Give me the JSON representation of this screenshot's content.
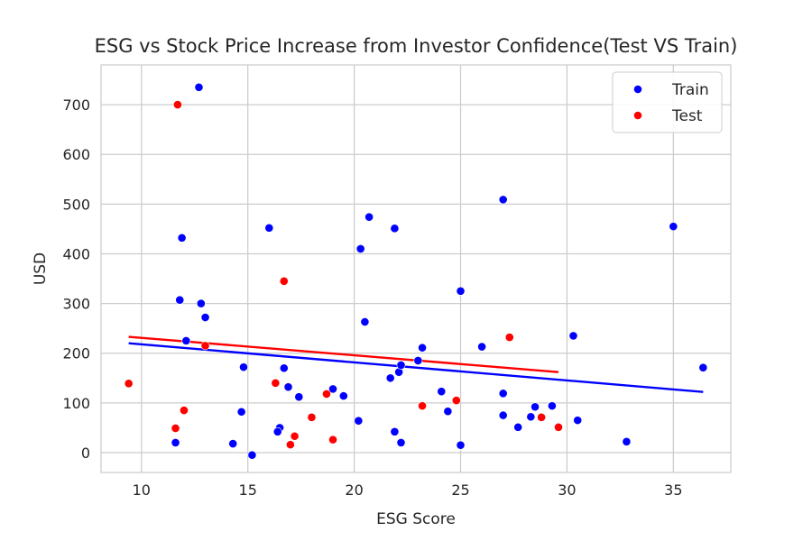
{
  "chart_data": {
    "type": "scatter",
    "title": "ESG vs Stock Price Increase from Investor Confidence(Test VS Train)",
    "xlabel": "ESG Score",
    "ylabel": "USD",
    "xlim": [
      8.1,
      37.7
    ],
    "ylim": [
      -40,
      780
    ],
    "xticks": [
      10,
      15,
      20,
      25,
      30,
      35
    ],
    "yticks": [
      0,
      100,
      200,
      300,
      400,
      500,
      600,
      700
    ],
    "grid": true,
    "legend_position": "top-right",
    "series": [
      {
        "name": "Train",
        "color": "#0000ff",
        "points": [
          [
            12.7,
            735
          ],
          [
            11.9,
            432
          ],
          [
            11.8,
            307
          ],
          [
            12.8,
            300
          ],
          [
            13.0,
            272
          ],
          [
            12.1,
            225
          ],
          [
            11.6,
            20
          ],
          [
            14.8,
            172
          ],
          [
            14.7,
            82
          ],
          [
            14.3,
            18
          ],
          [
            15.2,
            -5
          ],
          [
            16.0,
            452
          ],
          [
            16.7,
            170
          ],
          [
            16.9,
            132
          ],
          [
            17.4,
            112
          ],
          [
            16.5,
            50
          ],
          [
            16.4,
            42
          ],
          [
            19.0,
            128
          ],
          [
            19.5,
            114
          ],
          [
            20.3,
            410
          ],
          [
            20.7,
            474
          ],
          [
            20.5,
            263
          ],
          [
            20.2,
            64
          ],
          [
            21.7,
            150
          ],
          [
            21.9,
            451
          ],
          [
            22.1,
            162
          ],
          [
            22.2,
            176
          ],
          [
            23.0,
            185
          ],
          [
            23.2,
            211
          ],
          [
            21.9,
            42
          ],
          [
            22.2,
            20
          ],
          [
            24.1,
            123
          ],
          [
            24.4,
            83
          ],
          [
            25.0,
            325
          ],
          [
            25.0,
            15
          ],
          [
            26.0,
            213
          ],
          [
            27.0,
            509
          ],
          [
            27.0,
            119
          ],
          [
            27.0,
            75
          ],
          [
            27.7,
            51
          ],
          [
            28.3,
            72
          ],
          [
            28.5,
            92
          ],
          [
            29.3,
            94
          ],
          [
            30.3,
            235
          ],
          [
            30.5,
            65
          ],
          [
            32.8,
            22
          ],
          [
            35.0,
            455
          ],
          [
            36.4,
            171
          ]
        ],
        "fit": [
          [
            9.4,
            220
          ],
          [
            36.4,
            122
          ]
        ]
      },
      {
        "name": "Test",
        "color": "#ff0000",
        "points": [
          [
            11.7,
            700
          ],
          [
            9.4,
            139
          ],
          [
            11.6,
            49
          ],
          [
            12.0,
            85
          ],
          [
            13.0,
            215
          ],
          [
            16.3,
            140
          ],
          [
            16.7,
            345
          ],
          [
            17.0,
            16
          ],
          [
            17.2,
            33
          ],
          [
            18.0,
            71
          ],
          [
            18.7,
            118
          ],
          [
            19.0,
            26
          ],
          [
            23.2,
            94
          ],
          [
            24.8,
            105
          ],
          [
            27.3,
            232
          ],
          [
            28.8,
            71
          ],
          [
            29.6,
            51
          ]
        ],
        "fit": [
          [
            9.4,
            233
          ],
          [
            29.6,
            162
          ]
        ]
      }
    ]
  }
}
